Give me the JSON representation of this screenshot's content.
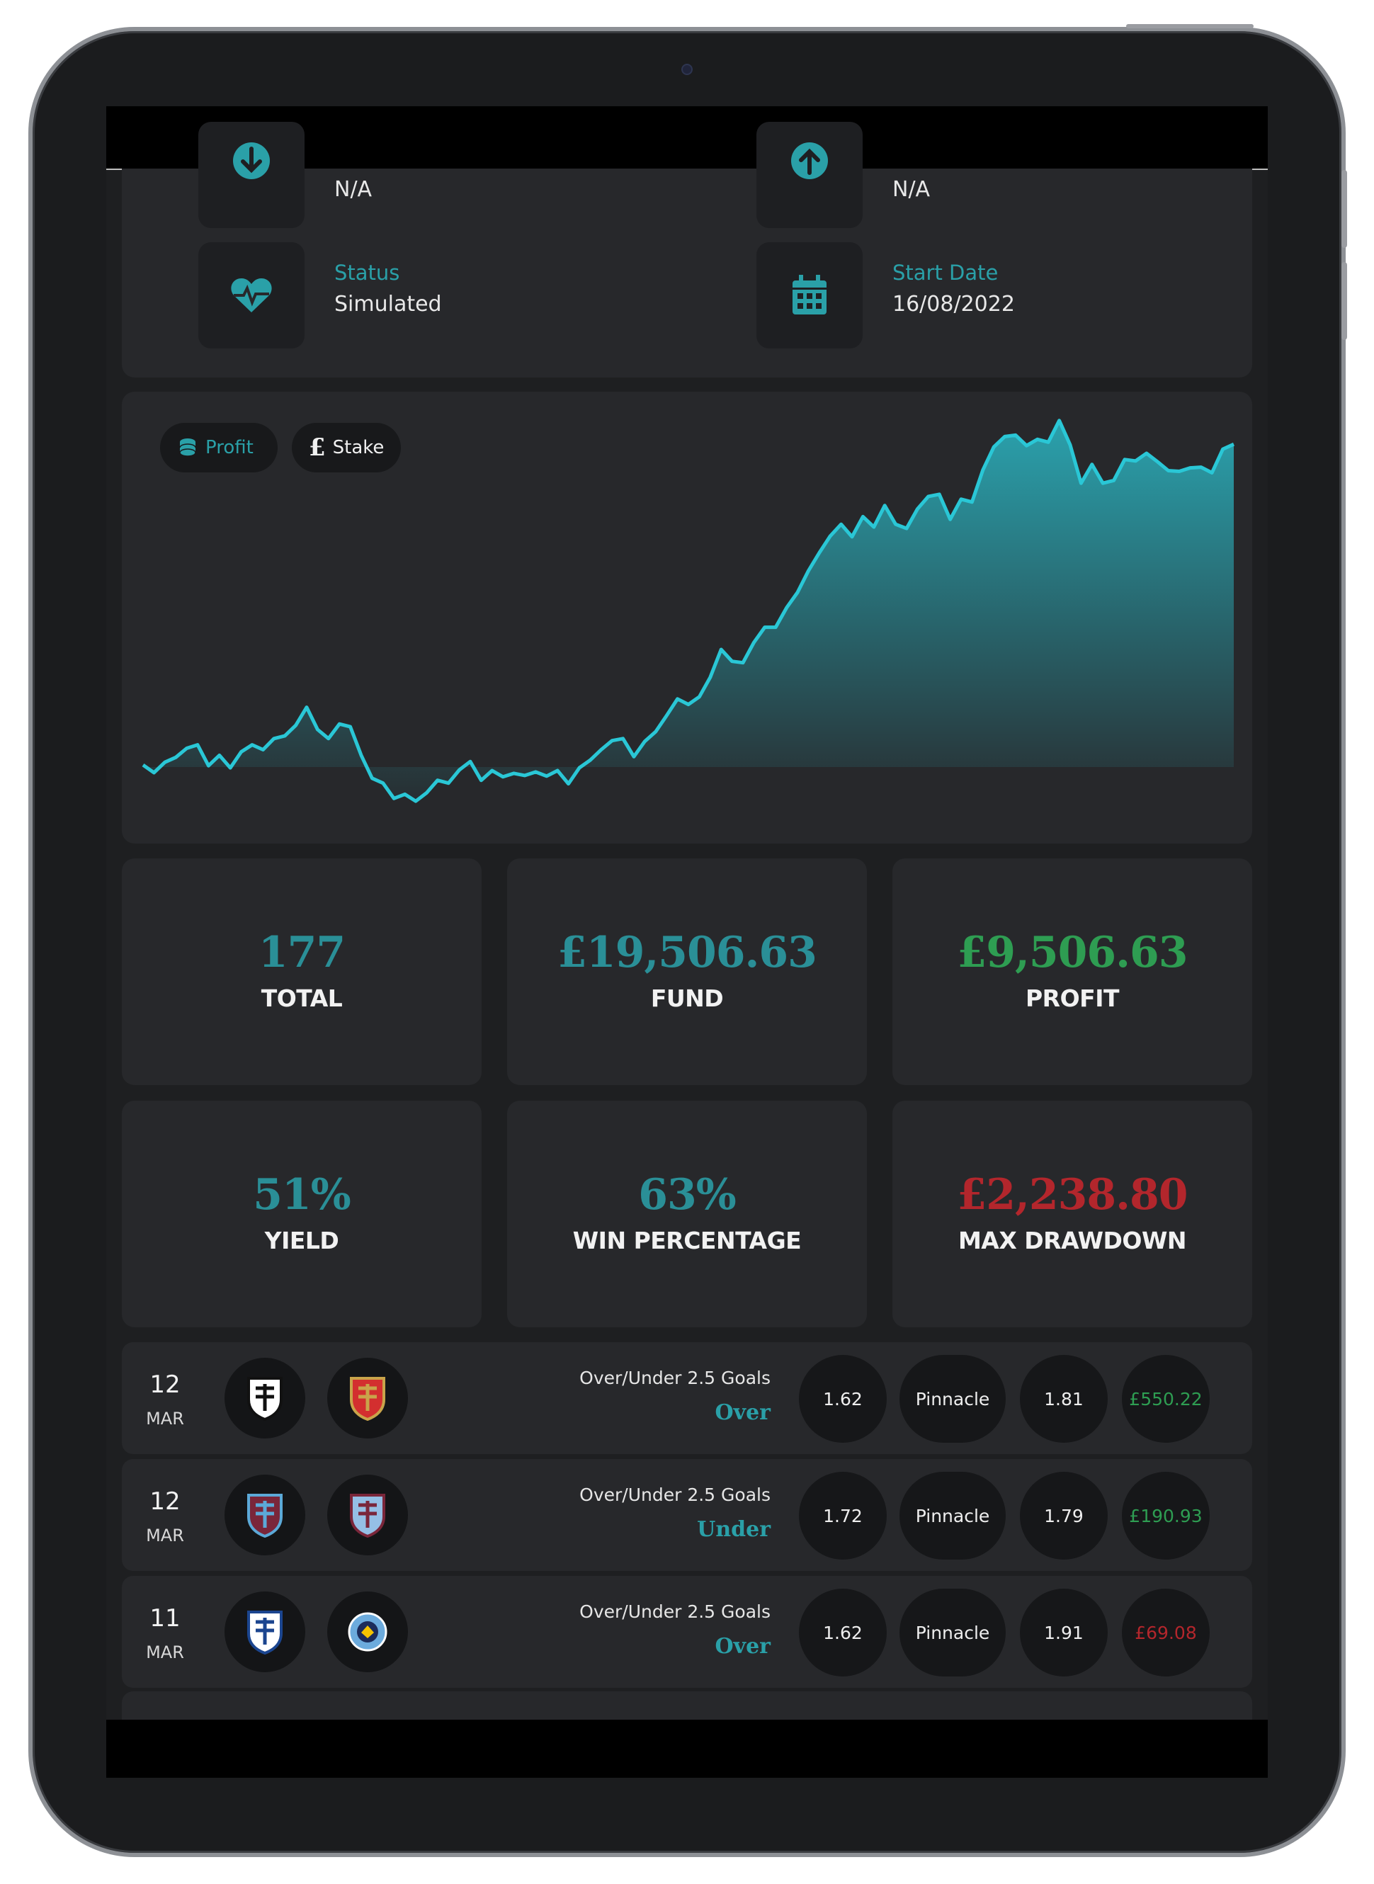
{
  "info": {
    "row1_left_value": "N/A",
    "row1_right_value": "N/A",
    "status_label": "Status",
    "status_value": "Simulated",
    "start_date_label": "Start Date",
    "start_date_value": "16/08/2022"
  },
  "chart_toggle": {
    "profit_label": "Profit",
    "stake_label": "Stake",
    "active": "Stake"
  },
  "chart_data": {
    "type": "area",
    "title": "",
    "xlabel": "",
    "ylabel": "",
    "grid": false,
    "legend": "none",
    "color": "#2ac7d6",
    "x": [
      0,
      3,
      6,
      9,
      12,
      15,
      18,
      21,
      24,
      27,
      30,
      33,
      36,
      39,
      42,
      45,
      48,
      51,
      54,
      57,
      60,
      63,
      66,
      69,
      72,
      75,
      78,
      81,
      84,
      87,
      90,
      93,
      96,
      99,
      102,
      105,
      108,
      111,
      114,
      117,
      120,
      123,
      126,
      129,
      132,
      135,
      138,
      141,
      144,
      147,
      150,
      153,
      156,
      159,
      162,
      165,
      168,
      171,
      174,
      177,
      180,
      183,
      186,
      189,
      192,
      195,
      198,
      201,
      204,
      207,
      210,
      213,
      216,
      219,
      222,
      225,
      228,
      231,
      234,
      237,
      240,
      243,
      246,
      249,
      252,
      255,
      258,
      261,
      264,
      267,
      270,
      273,
      276,
      279,
      282,
      285,
      288,
      291,
      294,
      297,
      300
    ],
    "values": [
      1.4,
      0.3,
      1.8,
      2.5,
      3.8,
      4.3,
      1.3,
      2.8,
      1.0,
      3.3,
      4.3,
      3.6,
      5.2,
      5.6,
      7.1,
      9.7,
      6.5,
      5.2,
      7.3,
      6.9,
      2.8,
      -0.5,
      -1.2,
      -3.4,
      -2.8,
      -3.8,
      -2.6,
      -0.8,
      -1.2,
      0.7,
      1.9,
      -0.8,
      0.6,
      -0.3,
      0.2,
      -0.1,
      0.4,
      -0.2,
      0.6,
      -1.3,
      1.0,
      2.1,
      3.6,
      4.9,
      5.2,
      2.6,
      4.8,
      6.2,
      8.5,
      10.9,
      10.1,
      11.2,
      14.0,
      18.0,
      16.3,
      16.1,
      19.0,
      21.2,
      21.2,
      24.0,
      26.2,
      29.3,
      31.9,
      34.3,
      36.0,
      34.2,
      37.1,
      35.6,
      38.7,
      36.0,
      35.4,
      38.2,
      40.0,
      40.3,
      36.7,
      39.6,
      39.2,
      43.8,
      47.1,
      48.6,
      48.8,
      47.3,
      48.2,
      47.8,
      50.9,
      47.4,
      41.9,
      44.6,
      41.9,
      42.3,
      45.3,
      45.1,
      46.2,
      45.0,
      43.7,
      43.6,
      44.1,
      44.2,
      43.4,
      46.8,
      47.5
    ],
    "ylim": [
      -5,
      52
    ]
  },
  "stats": [
    {
      "value": "177",
      "label": "TOTAL",
      "color": "#2a8f97"
    },
    {
      "value": "£19,506.63",
      "label": "FUND",
      "color": "#2a8f97"
    },
    {
      "value": "£9,506.63",
      "label": "PROFIT",
      "color": "#2e9d52"
    },
    {
      "value": "51%",
      "label": "YIELD",
      "color": "#2a8f97"
    },
    {
      "value": "63%",
      "label": "WIN PERCENTAGE",
      "color": "#2a8f97"
    },
    {
      "value": "£2,238.80",
      "label": "MAX DRAWDOWN",
      "color": "#b3262c"
    }
  ],
  "bets": [
    {
      "day": "12",
      "month": "MAR",
      "home_badge": "fulham-badge-icon",
      "away_badge": "arsenal-badge-icon",
      "market": "Over/Under 2.5 Goals",
      "selection": "Over",
      "odds": "1.62",
      "bookmaker": "Pinnacle",
      "closing_odds": "1.81",
      "result": "£550.22",
      "result_color": "#2e9d52"
    },
    {
      "day": "12",
      "month": "MAR",
      "home_badge": "west-ham-badge-icon",
      "away_badge": "aston-villa-badge-icon",
      "market": "Over/Under 2.5 Goals",
      "selection": "Under",
      "odds": "1.72",
      "bookmaker": "Pinnacle",
      "closing_odds": "1.79",
      "result": "£190.93",
      "result_color": "#2e9d52"
    },
    {
      "day": "11",
      "month": "MAR",
      "home_badge": "crystal-palace-badge-icon",
      "away_badge": "manchester-city-badge-icon",
      "market": "Over/Under 2.5 Goals",
      "selection": "Over",
      "odds": "1.62",
      "bookmaker": "Pinnacle",
      "closing_odds": "1.91",
      "result": "£69.08",
      "result_color": "#b3262c"
    }
  ]
}
